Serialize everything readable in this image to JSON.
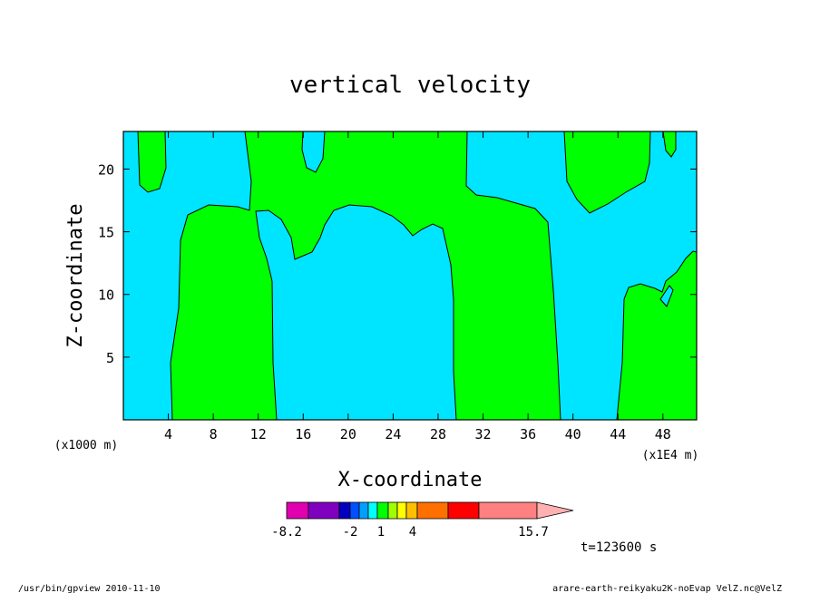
{
  "chart_data": {
    "type": "contour",
    "title": "vertical velocity",
    "xlabel": "X-coordinate",
    "ylabel": "Z-coordinate",
    "x_unit_left": "(x1000 m)",
    "x_unit_right": "(x1E4 m)",
    "xlim": [
      0,
      51
    ],
    "ylim": [
      0,
      23
    ],
    "xticks": [
      4,
      8,
      12,
      16,
      20,
      24,
      28,
      32,
      36,
      40,
      44,
      48
    ],
    "yticks": [
      5,
      10,
      15,
      20
    ],
    "contour_levels": [
      "-8.2",
      "-2",
      "1",
      "4",
      "15.7"
    ],
    "colors": {
      "negative_region": "#00e5ff",
      "positive_region": "#00ff00",
      "colorbar": [
        "#e000b0",
        "#8000c0",
        "#0000c0",
        "#0050ff",
        "#00a0ff",
        "#00ffff",
        "#00ff00",
        "#a0ff00",
        "#ffff00",
        "#ffc000",
        "#ff7000",
        "#ff0000",
        "#ff8080",
        "#ffb0b0"
      ]
    },
    "time_label": "t=123600 s"
  },
  "footer": {
    "left": "/usr/bin/gpview  2010-11-10",
    "right": "arare-earth-reikyaku2K-noEvap_VelZ.nc@VelZ"
  }
}
